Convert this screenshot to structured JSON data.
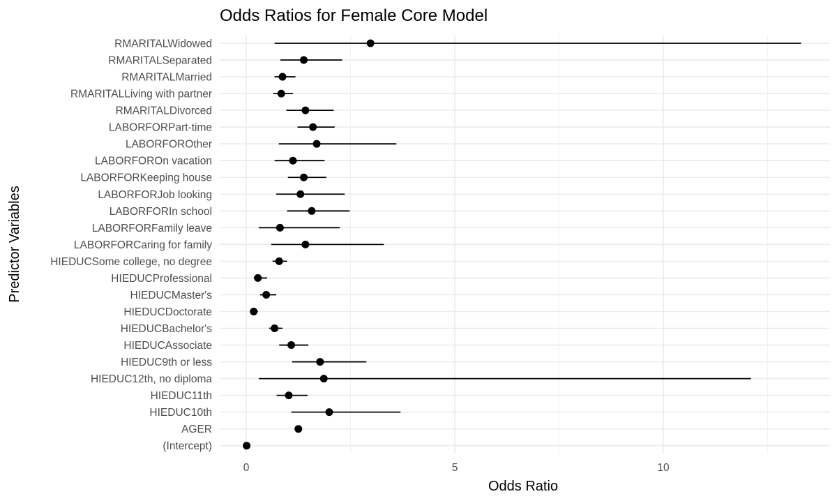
{
  "chart_data": {
    "type": "forest",
    "title": "Odds Ratios for Female Core Model",
    "xlabel": "Odds Ratio",
    "ylabel": "Predictor Variables",
    "xlim": [
      -0.65,
      13.9
    ],
    "x_ticks": [
      0,
      5,
      10
    ],
    "x_tick_labels": [
      "0",
      "5",
      "10"
    ],
    "grid": true,
    "colors": {
      "point": "#000000",
      "line": "#000000",
      "grid_major": "#ebebeb",
      "grid_minor": "#f2f2f2"
    },
    "categories": [
      "RMARITALWidowed",
      "RMARITALSeparated",
      "RMARITALMarried",
      "RMARITALLiving with partner",
      "RMARITALDivorced",
      "LABORFORPart-time",
      "LABORFOROther",
      "LABORFOROn vacation",
      "LABORFORKeeping house",
      "LABORFORJob looking",
      "LABORFORIn school",
      "LABORFORFamily leave",
      "LABORFORCaring for family",
      "HIEDUCSome college, no degree",
      "HIEDUCProfessional",
      "HIEDUCMaster's",
      "HIEDUCDoctorate",
      "HIEDUCBachelor's",
      "HIEDUCAssociate",
      "HIEDUC9th or less",
      "HIEDUC12th, no diploma",
      "HIEDUC11th",
      "HIEDUC10th",
      "AGER",
      "(Intercept)"
    ],
    "estimates": [
      2.98,
      1.38,
      0.87,
      0.84,
      1.42,
      1.6,
      1.69,
      1.12,
      1.38,
      1.3,
      1.57,
      0.81,
      1.42,
      0.79,
      0.28,
      0.48,
      0.18,
      0.68,
      1.08,
      1.77,
      1.86,
      1.02,
      1.99,
      1.25,
      0.01
    ],
    "lower": [
      0.68,
      0.82,
      0.68,
      0.65,
      0.96,
      1.23,
      0.78,
      0.68,
      1.0,
      0.72,
      0.98,
      0.3,
      0.6,
      0.63,
      0.18,
      0.33,
      0.15,
      0.55,
      0.79,
      1.1,
      0.3,
      0.73,
      1.08,
      1.25,
      0.01
    ],
    "upper": [
      13.3,
      2.3,
      1.18,
      1.12,
      2.1,
      2.12,
      3.6,
      1.88,
      1.92,
      2.36,
      2.48,
      2.24,
      3.3,
      0.98,
      0.5,
      0.72,
      0.28,
      0.87,
      1.49,
      2.88,
      12.1,
      1.47,
      3.7,
      1.25,
      0.01
    ]
  }
}
